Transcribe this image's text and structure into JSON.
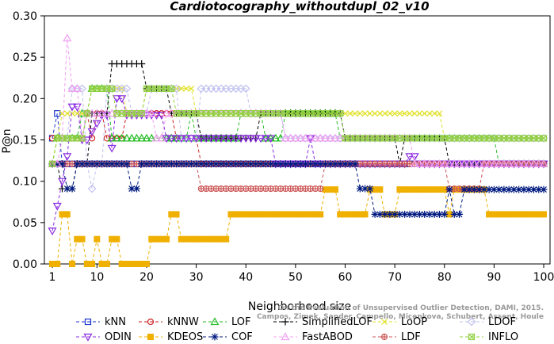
{
  "chart_data": {
    "type": "line",
    "title": "Cardiotocography_withoutdupl_02_v10",
    "xlabel": "Neighborhood size",
    "ylabel": "P@n",
    "xlim": [
      1,
      100
    ],
    "ylim": [
      0,
      0.3
    ],
    "xticks": [
      1,
      10,
      20,
      30,
      40,
      50,
      60,
      70,
      80,
      90,
      100
    ],
    "yticks": [
      0.0,
      0.05,
      0.1,
      0.15,
      0.2,
      0.25,
      0.3
    ],
    "grid": false,
    "legend_position": "bottom",
    "credit": [
      "Campos, Zimek, Sander, Campello, Micenkova, Schubert, Assent, Houle",
      "On the Evaluation of Unsupervised Outlier Detection, DAMI, 2015."
    ],
    "series": [
      {
        "name": "kNN",
        "color": "#1a33cc",
        "marker": "square",
        "values": [
          [
            1,
            0.152
          ],
          [
            2,
            0.182
          ],
          [
            3,
            0.121
          ],
          [
            5,
            0.121
          ],
          [
            10,
            0.121
          ],
          [
            20,
            0.121
          ],
          [
            40,
            0.121
          ],
          [
            60,
            0.121
          ],
          [
            80,
            0.121
          ],
          [
            100,
            0.121
          ]
        ]
      },
      {
        "name": "kNNW",
        "color": "#cc2222",
        "marker": "circle",
        "values": [
          [
            1,
            0.152
          ],
          [
            2,
            0.152
          ],
          [
            4,
            0.152
          ],
          [
            5,
            0.152
          ],
          [
            7,
            0.152
          ],
          [
            8,
            0.182
          ],
          [
            9,
            0.152
          ],
          [
            10,
            0.182
          ],
          [
            12,
            0.152
          ],
          [
            14,
            0.152
          ],
          [
            15,
            0.152
          ],
          [
            16,
            0.182
          ],
          [
            25,
            0.182
          ],
          [
            26,
            0.152
          ],
          [
            30,
            0.152
          ],
          [
            31,
            0.121
          ],
          [
            60,
            0.121
          ],
          [
            100,
            0.121
          ]
        ]
      },
      {
        "name": "LOF",
        "color": "#22bb22",
        "marker": "triangle",
        "values": [
          [
            1,
            0.121
          ],
          [
            2,
            0.152
          ],
          [
            4,
            0.152
          ],
          [
            6,
            0.152
          ],
          [
            7,
            0.182
          ],
          [
            8,
            0.182
          ],
          [
            9,
            0.212
          ],
          [
            12,
            0.212
          ],
          [
            13,
            0.152
          ],
          [
            20,
            0.152
          ],
          [
            27,
            0.152
          ],
          [
            28,
            0.152
          ],
          [
            29,
            0.182
          ],
          [
            30,
            0.152
          ],
          [
            38,
            0.152
          ],
          [
            39,
            0.182
          ],
          [
            43,
            0.182
          ],
          [
            44,
            0.152
          ],
          [
            47,
            0.152
          ],
          [
            48,
            0.182
          ],
          [
            58,
            0.182
          ],
          [
            59,
            0.152
          ],
          [
            90,
            0.152
          ],
          [
            91,
            0.121
          ],
          [
            100,
            0.121
          ]
        ]
      },
      {
        "name": "SimplifiedLOF",
        "color": "#000000",
        "marker": "plus",
        "values": [
          [
            1,
            0.121
          ],
          [
            2,
            0.121
          ],
          [
            3,
            0.091
          ],
          [
            5,
            0.091
          ],
          [
            6,
            0.121
          ],
          [
            8,
            0.121
          ],
          [
            9,
            0.182
          ],
          [
            12,
            0.182
          ],
          [
            13,
            0.242
          ],
          [
            18,
            0.242
          ],
          [
            19,
            0.242
          ],
          [
            20,
            0.212
          ],
          [
            21,
            0.212
          ],
          [
            24,
            0.212
          ],
          [
            25,
            0.182
          ],
          [
            30,
            0.182
          ],
          [
            31,
            0.152
          ],
          [
            42,
            0.152
          ],
          [
            43,
            0.182
          ],
          [
            59,
            0.182
          ],
          [
            60,
            0.152
          ],
          [
            62,
            0.152
          ],
          [
            70,
            0.152
          ],
          [
            71,
            0.121
          ],
          [
            72,
            0.152
          ],
          [
            80,
            0.152
          ],
          [
            81,
            0.121
          ],
          [
            100,
            0.121
          ]
        ]
      },
      {
        "name": "LoOP",
        "color": "#e0e020",
        "marker": "x",
        "values": [
          [
            1,
            0.121
          ],
          [
            2,
            0.152
          ],
          [
            3,
            0.182
          ],
          [
            5,
            0.182
          ],
          [
            6,
            0.182
          ],
          [
            8,
            0.182
          ],
          [
            9,
            0.212
          ],
          [
            12,
            0.212
          ],
          [
            16,
            0.182
          ],
          [
            17,
            0.182
          ],
          [
            20,
            0.212
          ],
          [
            24,
            0.212
          ],
          [
            30,
            0.182
          ],
          [
            60,
            0.182
          ],
          [
            79,
            0.182
          ],
          [
            80,
            0.152
          ],
          [
            100,
            0.152
          ]
        ]
      },
      {
        "name": "LDOF",
        "color": "#c0c0f0",
        "marker": "diamond",
        "values": [
          [
            1,
            0.121
          ],
          [
            2,
            0.121
          ],
          [
            3,
            0.152
          ],
          [
            5,
            0.212
          ],
          [
            7,
            0.212
          ],
          [
            8,
            0.121
          ],
          [
            9,
            0.091
          ],
          [
            10,
            0.121
          ],
          [
            12,
            0.212
          ],
          [
            14,
            0.212
          ],
          [
            16,
            0.212
          ],
          [
            17,
            0.182
          ],
          [
            19,
            0.182
          ],
          [
            21,
            0.212
          ],
          [
            24,
            0.212
          ],
          [
            26,
            0.212
          ],
          [
            27,
            0.152
          ],
          [
            30,
            0.152
          ],
          [
            31,
            0.212
          ],
          [
            38,
            0.212
          ],
          [
            40,
            0.212
          ],
          [
            41,
            0.182
          ],
          [
            43,
            0.182
          ],
          [
            45,
            0.182
          ],
          [
            47,
            0.182
          ],
          [
            48,
            0.152
          ],
          [
            60,
            0.152
          ],
          [
            80,
            0.152
          ],
          [
            100,
            0.152
          ]
        ]
      },
      {
        "name": "ODIN",
        "color": "#8a2be2",
        "marker": "triangle-down",
        "values": [
          [
            1,
            0.04
          ],
          [
            2,
            0.07
          ],
          [
            3,
            0.1
          ],
          [
            4,
            0.13
          ],
          [
            5,
            0.19
          ],
          [
            6,
            0.19
          ],
          [
            7,
            0.15
          ],
          [
            8,
            0.15
          ],
          [
            9,
            0.16
          ],
          [
            10,
            0.17
          ],
          [
            11,
            0.18
          ],
          [
            13,
            0.14
          ],
          [
            14,
            0.2
          ],
          [
            16,
            0.18
          ],
          [
            18,
            0.18
          ],
          [
            20,
            0.18
          ],
          [
            22,
            0.18
          ],
          [
            24,
            0.152
          ],
          [
            26,
            0.152
          ],
          [
            28,
            0.152
          ],
          [
            30,
            0.152
          ],
          [
            40,
            0.152
          ],
          [
            46,
            0.121
          ],
          [
            47,
            0.121
          ],
          [
            50,
            0.121
          ],
          [
            53,
            0.152
          ],
          [
            54,
            0.121
          ],
          [
            60,
            0.121
          ],
          [
            72,
            0.121
          ],
          [
            73,
            0.13
          ],
          [
            74,
            0.13
          ],
          [
            75,
            0.121
          ],
          [
            100,
            0.121
          ]
        ]
      },
      {
        "name": "KDEOS",
        "color": "#f0b000",
        "marker": "square-filled",
        "values": [
          [
            1,
            0.0
          ],
          [
            2,
            0.0
          ],
          [
            3,
            0.06
          ],
          [
            4,
            0.06
          ],
          [
            5,
            0.0
          ],
          [
            6,
            0.03
          ],
          [
            8,
            0.0
          ],
          [
            9,
            0.0
          ],
          [
            10,
            0.03
          ],
          [
            11,
            0.0
          ],
          [
            12,
            0.0
          ],
          [
            13,
            0.03
          ],
          [
            14,
            0.03
          ],
          [
            15,
            0.0
          ],
          [
            20,
            0.0
          ],
          [
            21,
            0.03
          ],
          [
            24,
            0.03
          ],
          [
            25,
            0.06
          ],
          [
            26,
            0.06
          ],
          [
            27,
            0.03
          ],
          [
            36,
            0.03
          ],
          [
            37,
            0.06
          ],
          [
            55,
            0.06
          ],
          [
            56,
            0.09
          ],
          [
            58,
            0.09
          ],
          [
            59,
            0.06
          ],
          [
            64,
            0.06
          ],
          [
            65,
            0.09
          ],
          [
            67,
            0.09
          ],
          [
            68,
            0.06
          ],
          [
            70,
            0.06
          ],
          [
            71,
            0.09
          ],
          [
            80,
            0.09
          ],
          [
            81,
            0.06
          ],
          [
            82,
            0.09
          ],
          [
            88,
            0.09
          ],
          [
            89,
            0.06
          ],
          [
            90,
            0.06
          ],
          [
            91,
            0.06
          ],
          [
            92,
            0.06
          ],
          [
            100,
            0.06
          ]
        ]
      },
      {
        "name": "LDF",
        "color": "#cc5555",
        "marker": "circle-filled",
        "values": [
          [
            1,
            0.121
          ],
          [
            2,
            0.121
          ],
          [
            5,
            0.121
          ],
          [
            10,
            0.121
          ],
          [
            20,
            0.121
          ],
          [
            30,
            0.121
          ],
          [
            31,
            0.091
          ],
          [
            55,
            0.091
          ],
          [
            56,
            0.121
          ],
          [
            70,
            0.121
          ],
          [
            80,
            0.121
          ],
          [
            81,
            0.091
          ],
          [
            87,
            0.091
          ],
          [
            88,
            0.121
          ],
          [
            100,
            0.121
          ]
        ]
      },
      {
        "name": "COF",
        "color": "#001a80",
        "marker": "star",
        "values": [
          [
            1,
            0.121
          ],
          [
            2,
            0.121
          ],
          [
            4,
            0.091
          ],
          [
            5,
            0.091
          ],
          [
            6,
            0.121
          ],
          [
            10,
            0.121
          ],
          [
            16,
            0.121
          ],
          [
            17,
            0.091
          ],
          [
            18,
            0.091
          ],
          [
            19,
            0.121
          ],
          [
            40,
            0.121
          ],
          [
            62,
            0.121
          ],
          [
            63,
            0.091
          ],
          [
            65,
            0.091
          ],
          [
            66,
            0.06
          ],
          [
            80,
            0.06
          ],
          [
            81,
            0.09
          ],
          [
            82,
            0.06
          ],
          [
            83,
            0.06
          ],
          [
            84,
            0.09
          ],
          [
            86,
            0.09
          ],
          [
            87,
            0.09
          ],
          [
            88,
            0.09
          ],
          [
            100,
            0.09
          ]
        ]
      },
      {
        "name": "FastABOD",
        "color": "#f0a0f0",
        "marker": "triangle-light",
        "values": [
          [
            1,
            0.121
          ],
          [
            2,
            0.121
          ],
          [
            3,
            0.152
          ],
          [
            4,
            0.273
          ],
          [
            5,
            0.212
          ],
          [
            6,
            0.212
          ],
          [
            7,
            0.152
          ],
          [
            8,
            0.182
          ],
          [
            10,
            0.182
          ],
          [
            12,
            0.182
          ],
          [
            14,
            0.182
          ],
          [
            16,
            0.182
          ],
          [
            18,
            0.182
          ],
          [
            20,
            0.182
          ],
          [
            22,
            0.152
          ],
          [
            24,
            0.182
          ],
          [
            26,
            0.182
          ],
          [
            40,
            0.182
          ],
          [
            46,
            0.182
          ],
          [
            48,
            0.152
          ],
          [
            60,
            0.152
          ],
          [
            72,
            0.152
          ],
          [
            74,
            0.121
          ],
          [
            80,
            0.121
          ],
          [
            100,
            0.121
          ]
        ]
      },
      {
        "name": "INFLO",
        "color": "#90d040",
        "marker": "square-x",
        "values": [
          [
            1,
            0.121
          ],
          [
            2,
            0.152
          ],
          [
            4,
            0.152
          ],
          [
            6,
            0.152
          ],
          [
            8,
            0.182
          ],
          [
            9,
            0.212
          ],
          [
            12,
            0.212
          ],
          [
            14,
            0.182
          ],
          [
            18,
            0.182
          ],
          [
            20,
            0.212
          ],
          [
            24,
            0.212
          ],
          [
            26,
            0.182
          ],
          [
            30,
            0.182
          ],
          [
            36,
            0.182
          ],
          [
            42,
            0.182
          ],
          [
            48,
            0.182
          ],
          [
            55,
            0.182
          ],
          [
            58,
            0.182
          ],
          [
            60,
            0.152
          ],
          [
            80,
            0.152
          ],
          [
            90,
            0.152
          ],
          [
            100,
            0.152
          ]
        ]
      }
    ]
  }
}
